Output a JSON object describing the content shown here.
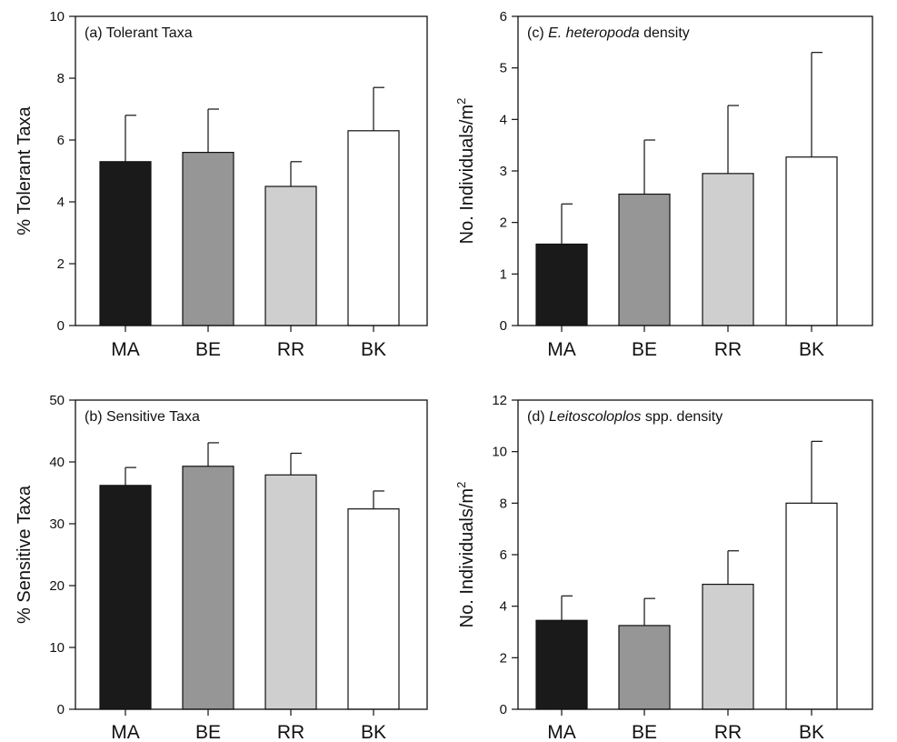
{
  "chart_data": [
    {
      "type": "bar",
      "title": {
        "prefix": "(a) ",
        "italic": "",
        "suffix": "Tolerant Taxa"
      },
      "ylabel": {
        "text": "% Tolerant Taxa",
        "sup": ""
      },
      "ylim": [
        0,
        10
      ],
      "yticks": [
        "0",
        "2",
        "4",
        "6",
        "8",
        "10"
      ],
      "categories": [
        "MA",
        "BE",
        "RR",
        "BK"
      ],
      "values": [
        5.3,
        5.6,
        4.5,
        6.3
      ],
      "errors": [
        1.5,
        1.4,
        0.8,
        1.4
      ],
      "colors": [
        "#1a1a1a",
        "#969696",
        "#cfcfcf",
        "#ffffff"
      ]
    },
    {
      "type": "bar",
      "title": {
        "prefix": "(b) ",
        "italic": "",
        "suffix": "Sensitive Taxa"
      },
      "ylabel": {
        "text": "% Sensitive Taxa",
        "sup": ""
      },
      "ylim": [
        0,
        50
      ],
      "yticks": [
        "0",
        "10",
        "20",
        "30",
        "40",
        "50"
      ],
      "categories": [
        "MA",
        "BE",
        "RR",
        "BK"
      ],
      "values": [
        36.2,
        39.3,
        37.9,
        32.4
      ],
      "errors": [
        2.9,
        3.8,
        3.5,
        2.9
      ],
      "colors": [
        "#1a1a1a",
        "#969696",
        "#cfcfcf",
        "#ffffff"
      ]
    },
    {
      "type": "bar",
      "title": {
        "prefix": "(c) ",
        "italic": "E. heteropoda",
        "suffix": " density"
      },
      "ylabel": {
        "text": "No. Individuals/m",
        "sup": "2"
      },
      "ylim": [
        0,
        6
      ],
      "yticks": [
        "0",
        "1",
        "2",
        "3",
        "4",
        "5",
        "6"
      ],
      "categories": [
        "MA",
        "BE",
        "RR",
        "BK"
      ],
      "values": [
        1.58,
        2.55,
        2.95,
        3.27
      ],
      "errors": [
        0.78,
        1.05,
        1.32,
        2.03
      ],
      "colors": [
        "#1a1a1a",
        "#969696",
        "#cfcfcf",
        "#ffffff"
      ]
    },
    {
      "type": "bar",
      "title": {
        "prefix": "(d) ",
        "italic": "Leitoscoloplos",
        "suffix": " spp. density"
      },
      "ylabel": {
        "text": "No. Individuals/m",
        "sup": "2"
      },
      "ylim": [
        0,
        12
      ],
      "yticks": [
        "0",
        "2",
        "4",
        "6",
        "8",
        "10",
        "12"
      ],
      "categories": [
        "MA",
        "BE",
        "RR",
        "BK"
      ],
      "values": [
        3.45,
        3.25,
        4.85,
        8.0
      ],
      "errors": [
        0.95,
        1.05,
        1.3,
        2.4
      ],
      "colors": [
        "#1a1a1a",
        "#969696",
        "#cfcfcf",
        "#ffffff"
      ]
    }
  ]
}
